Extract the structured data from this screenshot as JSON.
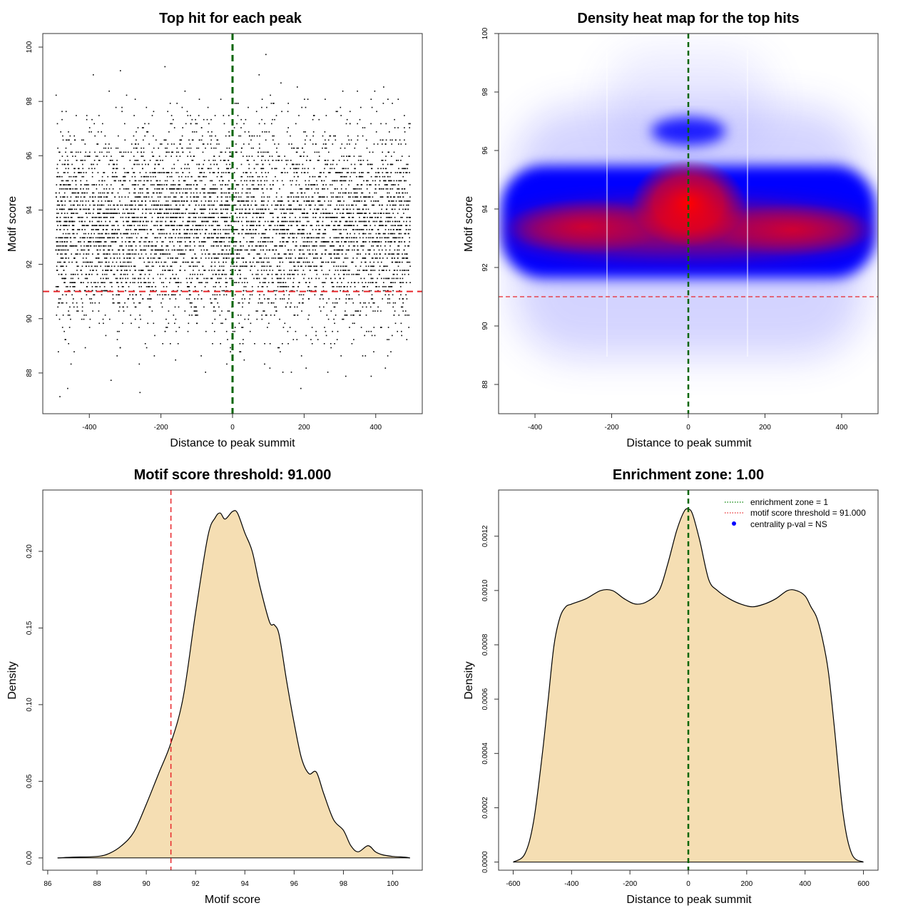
{
  "chart_data": [
    {
      "type": "scatter",
      "title": "Top hit for each peak",
      "xlabel": "Distance to peak summit",
      "ylabel": "Motif score",
      "xlim": [
        -530,
        530
      ],
      "ylim": [
        86.5,
        100.5
      ],
      "xticks": [
        -400,
        -200,
        0,
        200,
        400
      ],
      "yticks": [
        88,
        90,
        92,
        94,
        96,
        98,
        100
      ],
      "vline": {
        "x": 0,
        "color": "#006400",
        "style": "dashed"
      },
      "hline": {
        "y": 91,
        "color": "#e8262a",
        "style": "dashed"
      },
      "point_color": "#000000",
      "distribution": {
        "x_range": [
          -495,
          495
        ],
        "y_mean": 93.4,
        "y_sd": 1.8,
        "y_step": 0.15,
        "approx_points": 6000
      }
    },
    {
      "type": "heatmap",
      "title": "Density heat map for the top hits",
      "xlabel": "Distance to peak summit",
      "ylabel": "Motif score",
      "xlim": [
        -495,
        495
      ],
      "ylim": [
        87,
        100
      ],
      "xticks": [
        -400,
        -200,
        0,
        200,
        400
      ],
      "yticks": [
        88,
        90,
        92,
        94,
        96,
        98,
        100
      ],
      "vline": {
        "x": 0,
        "color": "#006400",
        "style": "dashed"
      },
      "hline": {
        "y": 91,
        "color": "#e8262a",
        "style": "dashed"
      },
      "colors": [
        "#ffffff",
        "#0000ff",
        "#ff0000"
      ],
      "hotspot": {
        "x": 0,
        "y": 94.2
      }
    },
    {
      "type": "area",
      "title": "Motif score threshold: 91.000",
      "xlabel": "Motif score",
      "ylabel": "Density",
      "xlim": [
        85.8,
        101.2
      ],
      "ylim": [
        -0.008,
        0.24
      ],
      "xticks": [
        86,
        88,
        90,
        92,
        94,
        96,
        98,
        100
      ],
      "yticks": [
        0.0,
        0.05,
        0.1,
        0.15,
        0.2
      ],
      "ytick_labels": [
        "0.00",
        "0.05",
        "0.10",
        "0.15",
        "0.20"
      ],
      "fill": "#f5deb3",
      "vline": {
        "x": 91,
        "color": "#e8262a",
        "style": "dashed"
      },
      "x": [
        86.4,
        87,
        88,
        88.5,
        89,
        89.5,
        90,
        90.5,
        91,
        91.5,
        92,
        92.5,
        92.8,
        93,
        93.2,
        93.5,
        93.7,
        94,
        94.3,
        94.6,
        95,
        95.2,
        95.4,
        95.7,
        96,
        96.3,
        96.6,
        96.9,
        97.2,
        97.6,
        98,
        98.3,
        98.6,
        99,
        99.3,
        99.6,
        100,
        100.5,
        100.7
      ],
      "values": [
        0.0,
        0.0005,
        0.001,
        0.003,
        0.008,
        0.017,
        0.035,
        0.055,
        0.075,
        0.105,
        0.16,
        0.21,
        0.222,
        0.225,
        0.221,
        0.226,
        0.225,
        0.212,
        0.2,
        0.178,
        0.154,
        0.152,
        0.145,
        0.115,
        0.088,
        0.065,
        0.055,
        0.056,
        0.042,
        0.025,
        0.018,
        0.008,
        0.004,
        0.008,
        0.004,
        0.002,
        0.001,
        0.0005,
        0.0
      ]
    },
    {
      "type": "area",
      "title": "Enrichment zone: 1.00",
      "xlabel": "Distance to peak summit",
      "ylabel": "Density",
      "xlim": [
        -650,
        650
      ],
      "ylim": [
        -3e-05,
        0.00137
      ],
      "xticks": [
        -600,
        -400,
        -200,
        0,
        200,
        400,
        600
      ],
      "yticks": [
        0.0,
        0.0002,
        0.0004,
        0.0006,
        0.0008,
        0.001,
        0.0012
      ],
      "ytick_labels": [
        "0.0000",
        "0.0002",
        "0.0004",
        "0.0006",
        "0.0008",
        "0.0010",
        "0.0012"
      ],
      "fill": "#f5deb3",
      "vline": {
        "x": 0,
        "color": "#006400",
        "style": "dashed"
      },
      "x": [
        -600,
        -560,
        -530,
        -500,
        -480,
        -460,
        -440,
        -420,
        -400,
        -350,
        -300,
        -260,
        -220,
        -180,
        -140,
        -100,
        -70,
        -40,
        -15,
        0,
        15,
        40,
        70,
        100,
        140,
        180,
        220,
        260,
        300,
        340,
        370,
        400,
        420,
        440,
        460,
        480,
        500,
        530,
        560,
        600
      ],
      "values": [
        0.0,
        3e-05,
        0.00015,
        0.0004,
        0.0006,
        0.0008,
        0.0009,
        0.00094,
        0.00095,
        0.00097,
        0.001,
        0.001,
        0.00097,
        0.00095,
        0.00096,
        0.001,
        0.0011,
        0.00122,
        0.00129,
        0.0013,
        0.00128,
        0.00118,
        0.00104,
        0.001,
        0.00097,
        0.00095,
        0.00094,
        0.00095,
        0.00097,
        0.001,
        0.001,
        0.00098,
        0.00094,
        0.0009,
        0.00082,
        0.0007,
        0.0005,
        0.00018,
        3e-05,
        0.0
      ],
      "legend": {
        "position": "top-right",
        "entries": [
          {
            "label": "enrichment zone = 1",
            "color": "#008000",
            "kind": "dotted-line"
          },
          {
            "label": "motif score threshold = 91.000",
            "color": "#e8262a",
            "kind": "dotted-line"
          },
          {
            "label": "centrality p-val = NS",
            "color": "#0000ff",
            "kind": "point"
          }
        ]
      }
    }
  ]
}
